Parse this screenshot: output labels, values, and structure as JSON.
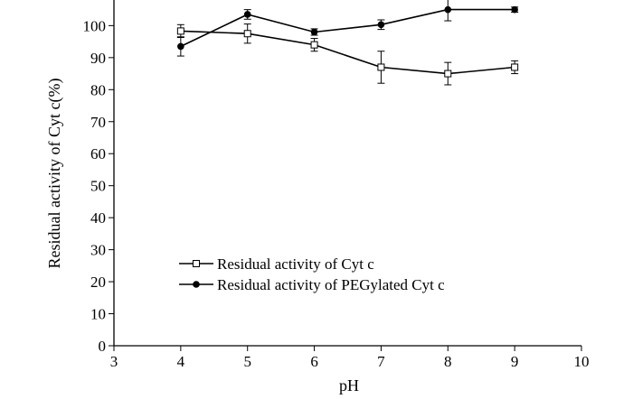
{
  "chart_data": {
    "type": "line",
    "title": "",
    "xlabel": "pH",
    "ylabel": "Residual activity of Cyt c(%)",
    "xlim": [
      3,
      10
    ],
    "ylim": [
      0,
      108
    ],
    "xticks": [
      3,
      4,
      5,
      6,
      7,
      8,
      9,
      10
    ],
    "yticks": [
      0,
      10,
      20,
      30,
      40,
      50,
      60,
      70,
      80,
      90,
      100
    ],
    "x": [
      4,
      5,
      6,
      7,
      8,
      9
    ],
    "legend_position": "lower-left",
    "series": [
      {
        "name": "Residual activity of Cyt c",
        "marker": "open-square",
        "values": [
          98.3,
          97.5,
          94.0,
          87.0,
          85.0,
          87.0
        ],
        "errors": [
          2.0,
          3.0,
          2.0,
          5.0,
          3.5,
          2.0
        ]
      },
      {
        "name": "Residual activity of PEGylated Cyt c",
        "marker": "filled-circle",
        "values": [
          93.5,
          103.5,
          98.0,
          100.3,
          105.0,
          105.0
        ],
        "errors": [
          3.0,
          1.5,
          1.0,
          1.5,
          3.5,
          0.8
        ]
      }
    ]
  }
}
